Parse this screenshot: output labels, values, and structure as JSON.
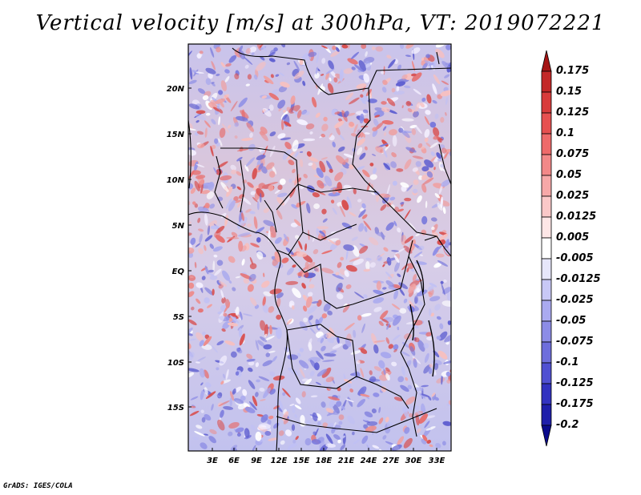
{
  "title": "Vertical velocity [m/s] at 300hPa, VT: 2019072221",
  "credit": "GrADS: IGES/COLA",
  "map": {
    "lat_labels": [
      "20N",
      "15N",
      "10N",
      "5N",
      "EQ",
      "5S",
      "10S",
      "15S"
    ],
    "lon_labels": [
      "3E",
      "6E",
      "9E",
      "12E",
      "15E",
      "18E",
      "21E",
      "24E",
      "27E",
      "30E",
      "33E"
    ]
  },
  "colorbar": {
    "labels": [
      "0.175",
      "0.15",
      "0.125",
      "0.1",
      "0.075",
      "0.05",
      "0.025",
      "0.0125",
      "0.005",
      "-0.005",
      "-0.0125",
      "-0.025",
      "-0.05",
      "-0.075",
      "-0.1",
      "-0.125",
      "-0.175",
      "-0.2"
    ],
    "colors": [
      "#a51414",
      "#c32828",
      "#d83c3c",
      "#e65050",
      "#ee6a6a",
      "#f28888",
      "#f6a8a8",
      "#fac8c8",
      "#fde6e6",
      "#ffffff",
      "#e6e6fa",
      "#c8c8f6",
      "#aaaaf0",
      "#8c8ce6",
      "#6e6edc",
      "#5050d2",
      "#3232c0",
      "#1e1eaa",
      "#0a0a8c"
    ]
  }
}
